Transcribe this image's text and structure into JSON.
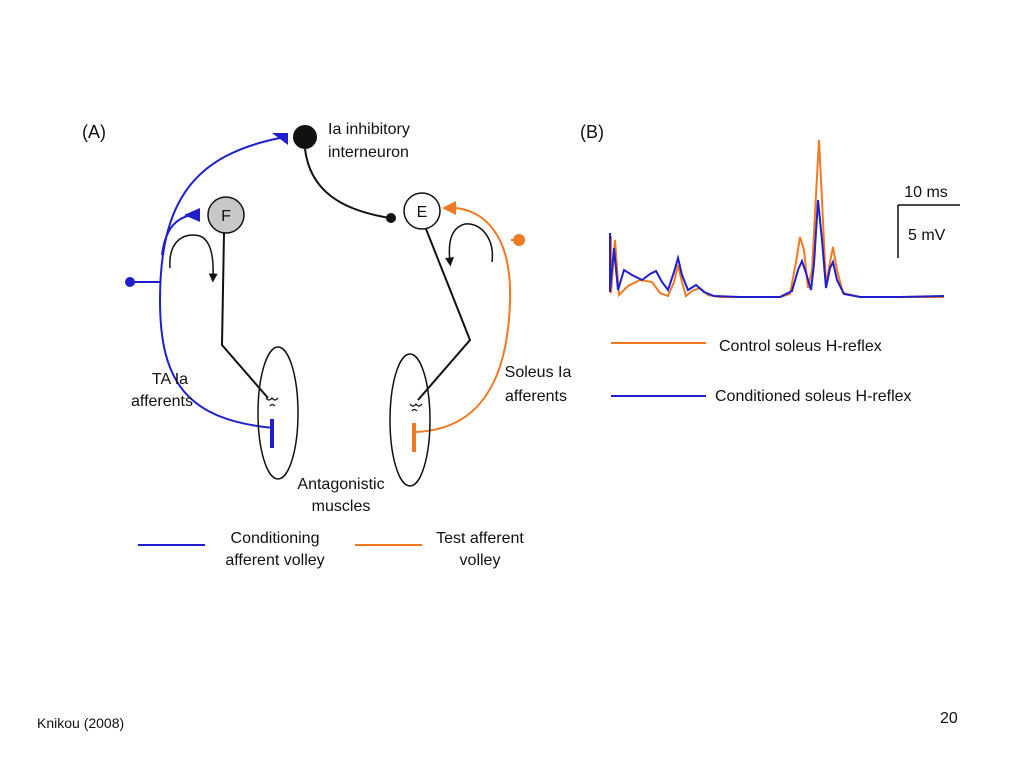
{
  "panel_a": {
    "label": "(A)",
    "interneuron_label": [
      "Ia inhibitory",
      "interneuron"
    ],
    "flexor_neuron": "F",
    "extensor_neuron": "E",
    "ta_afferents": [
      "TA Ia",
      "afferents"
    ],
    "soleus_afferents": [
      "Soleus Ia",
      "afferents"
    ],
    "muscles": [
      "Antagonistic",
      "muscles"
    ],
    "legend": [
      {
        "color": "#1f1fcc",
        "text": [
          "Conditioning",
          "afferent volley"
        ]
      },
      {
        "color": "#f07a24",
        "text": [
          "Test afferent",
          "volley"
        ]
      }
    ]
  },
  "panel_b": {
    "label": "(B)",
    "scale_time": "10 ms",
    "scale_voltage": "5 mV",
    "legend": [
      {
        "color": "#f07a24",
        "text": "Control soleus H-reflex"
      },
      {
        "color": "#1f1fcc",
        "text": "Conditioned soleus H-reflex"
      }
    ]
  },
  "colors": {
    "blue": "#1f1fcc",
    "orange": "#f07a24",
    "black": "#111111",
    "gray": "#c8c8c8"
  },
  "footer": {
    "citation": "Knikou (2008)",
    "page_number": "20"
  }
}
